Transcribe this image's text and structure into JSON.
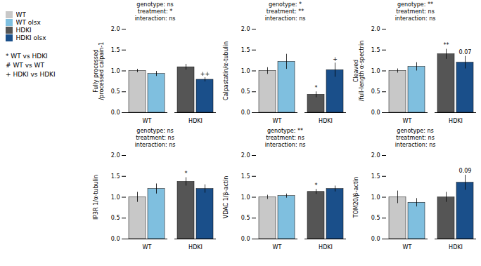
{
  "chart_data": [
    {
      "type": "bar",
      "title": "genotype: ns\ntreatment: *\ninteraction: ns",
      "y_label": "Fully processed\n/processed calpain-1",
      "categories": [
        "WT",
        "HDKI"
      ],
      "series": [
        {
          "name": "WT",
          "color": "#c8c8c8",
          "values": [
            1.0,
            null
          ],
          "errors": [
            0.04,
            null
          ],
          "annotations": [
            null,
            null
          ]
        },
        {
          "name": "WT olsx",
          "color": "#7fbfdf",
          "values": [
            0.93,
            null
          ],
          "errors": [
            0.06,
            null
          ],
          "annotations": [
            null,
            null
          ]
        },
        {
          "name": "HDKI",
          "color": "#555555",
          "values": [
            null,
            1.09
          ],
          "errors": [
            null,
            0.07
          ],
          "annotations": [
            null,
            null
          ]
        },
        {
          "name": "HDKI olsx",
          "color": "#1a4f8a",
          "values": [
            null,
            0.79
          ],
          "errors": [
            null,
            0.05
          ],
          "annotations": [
            null,
            "++"
          ]
        }
      ],
      "annotations": [
        "* WT vs HDKI",
        "# WT vs WT",
        "+ HDKI vs HDKI"
      ],
      "ylim": [
        0,
        2.0
      ],
      "yticks": [
        {
          "value": 0,
          "label": "0.0"
        },
        0.5,
        {
          "value": 1.0,
          "label": "1.0"
        },
        1.5,
        {
          "value": 2.0,
          "label": "2.0"
        }
      ]
    },
    {
      "type": "bar",
      "title": "genotype: *\ntreatment: **\ninteraction: ns",
      "y_label": "Calpastatin/α-tubulin",
      "categories": [
        "WT",
        "HDKI"
      ],
      "series": [
        {
          "name": "WT",
          "color": "#c8c8c8",
          "values": [
            1.0,
            null
          ],
          "errors": [
            0.08,
            null
          ],
          "annotations": [
            null,
            null
          ]
        },
        {
          "name": "WT olsx",
          "color": "#7fbfdf",
          "values": [
            1.22,
            null
          ],
          "errors": [
            0.18,
            null
          ],
          "annotations": [
            null,
            null
          ]
        },
        {
          "name": "HDKI",
          "color": "#555555",
          "values": [
            null,
            0.43
          ],
          "errors": [
            null,
            0.07
          ],
          "annotations": [
            null,
            "*"
          ]
        },
        {
          "name": "HDKI olsx",
          "color": "#1a4f8a",
          "values": [
            null,
            1.02
          ],
          "errors": [
            null,
            0.17
          ],
          "annotations": [
            null,
            "+"
          ]
        }
      ],
      "ylim": [
        0,
        2.0
      ],
      "yticks": [
        {
          "value": 0,
          "label": "0.0"
        },
        0.5,
        {
          "value": 1.0,
          "label": "1.0"
        },
        1.5,
        {
          "value": 2.0,
          "label": "2.0"
        }
      ]
    },
    {
      "type": "bar",
      "title": "genotype: **\ntreatment: ns\ninteraction: ns",
      "y_label": "Cleaved\n/full-length α-spectrin",
      "categories": [
        "WT",
        "HDKI"
      ],
      "series": [
        {
          "name": "WT",
          "color": "#c8c8c8",
          "values": [
            1.0,
            null
          ],
          "errors": [
            0.05,
            null
          ],
          "annotations": [
            null,
            null
          ]
        },
        {
          "name": "WT olsx",
          "color": "#7fbfdf",
          "values": [
            1.1,
            null
          ],
          "errors": [
            0.1,
            null
          ],
          "annotations": [
            null,
            null
          ]
        },
        {
          "name": "HDKI",
          "color": "#555555",
          "values": [
            null,
            1.4
          ],
          "errors": [
            null,
            0.12
          ],
          "annotations": [
            null,
            "**"
          ]
        },
        {
          "name": "HDKI olsx",
          "color": "#1a4f8a",
          "values": [
            null,
            1.2
          ],
          "errors": [
            null,
            0.15
          ],
          "annotations": [
            null,
            "0.07"
          ]
        }
      ],
      "ylim": [
        0,
        2.0
      ],
      "yticks": [
        {
          "value": 0,
          "label": "0.0"
        },
        0.5,
        {
          "value": 1.0,
          "label": "1.0"
        },
        1.5,
        {
          "value": 2.0,
          "label": "2.0"
        }
      ]
    },
    {
      "type": "bar",
      "title": "genotype: ns\ntreatment: ns\ninteraction: ns",
      "y_label": "IP3R 1/α-tubulin",
      "categories": [
        "WT",
        "HDKI"
      ],
      "series": [
        {
          "name": "WT",
          "color": "#c8c8c8",
          "values": [
            1.0,
            null
          ],
          "errors": [
            0.12,
            null
          ],
          "annotations": [
            null,
            null
          ]
        },
        {
          "name": "WT olsx",
          "color": "#7fbfdf",
          "values": [
            1.2,
            null
          ],
          "errors": [
            0.12,
            null
          ],
          "annotations": [
            null,
            null
          ]
        },
        {
          "name": "HDKI",
          "color": "#555555",
          "values": [
            null,
            1.37
          ],
          "errors": [
            null,
            0.1
          ],
          "annotations": [
            null,
            "*"
          ]
        },
        {
          "name": "HDKI olsx",
          "color": "#1a4f8a",
          "values": [
            null,
            1.2
          ],
          "errors": [
            null,
            0.1
          ],
          "annotations": [
            null,
            null
          ]
        }
      ],
      "ylim": [
        0,
        2.0
      ],
      "yticks": [
        {
          "value": 0,
          "label": "0.0"
        },
        0.5,
        {
          "value": 1.0,
          "label": "1.0"
        },
        1.5,
        {
          "value": 2.0,
          "label": "2.0"
        }
      ]
    },
    {
      "type": "bar",
      "title": "genotype: **\ntreatment: ns\ninteraction: ns",
      "y_label": "VDAC 1/β-actin",
      "categories": [
        "WT",
        "HDKI"
      ],
      "series": [
        {
          "name": "WT",
          "color": "#c8c8c8",
          "values": [
            1.0,
            null
          ],
          "errors": [
            0.05,
            null
          ],
          "annotations": [
            null,
            null
          ]
        },
        {
          "name": "WT olsx",
          "color": "#7fbfdf",
          "values": [
            1.03,
            null
          ],
          "errors": [
            0.05,
            null
          ],
          "annotations": [
            null,
            null
          ]
        },
        {
          "name": "HDKI",
          "color": "#555555",
          "values": [
            null,
            1.13
          ],
          "errors": [
            null,
            0.06
          ],
          "annotations": [
            null,
            "*"
          ]
        },
        {
          "name": "HDKI olsx",
          "color": "#1a4f8a",
          "values": [
            null,
            1.2
          ],
          "errors": [
            null,
            0.07
          ],
          "annotations": [
            null,
            null
          ]
        }
      ],
      "ylim": [
        0,
        2.0
      ],
      "yticks": [
        {
          "value": 0,
          "label": "0.0"
        },
        0.5,
        {
          "value": 1.0,
          "label": "1.0"
        },
        1.5,
        {
          "value": 2.0,
          "label": "2.0"
        }
      ]
    },
    {
      "type": "bar",
      "title": "genotype: ns\ntreatment: ns\ninteraction: ns",
      "y_label": "TOM20/β-actin",
      "categories": [
        "WT",
        "HDKI"
      ],
      "series": [
        {
          "name": "WT",
          "color": "#c8c8c8",
          "values": [
            1.0,
            null
          ],
          "errors": [
            0.15,
            null
          ],
          "annotations": [
            null,
            null
          ]
        },
        {
          "name": "WT olsx",
          "color": "#7fbfdf",
          "values": [
            0.87,
            null
          ],
          "errors": [
            0.1,
            null
          ],
          "annotations": [
            null,
            null
          ]
        },
        {
          "name": "HDKI",
          "color": "#555555",
          "values": [
            null,
            1.0
          ],
          "errors": [
            null,
            0.12
          ],
          "annotations": [
            null,
            null
          ]
        },
        {
          "name": "HDKI olsx",
          "color": "#1a4f8a",
          "values": [
            null,
            1.35
          ],
          "errors": [
            null,
            0.18
          ],
          "annotations": [
            null,
            "0.09"
          ]
        }
      ],
      "ylim": [
        0,
        2.0
      ],
      "yticks": [
        {
          "value": 0,
          "label": "0.0"
        },
        0.5,
        {
          "value": 1.0,
          "label": "1.0"
        },
        1.5,
        {
          "value": 2.0,
          "label": "2.0"
        }
      ]
    }
  ]
}
